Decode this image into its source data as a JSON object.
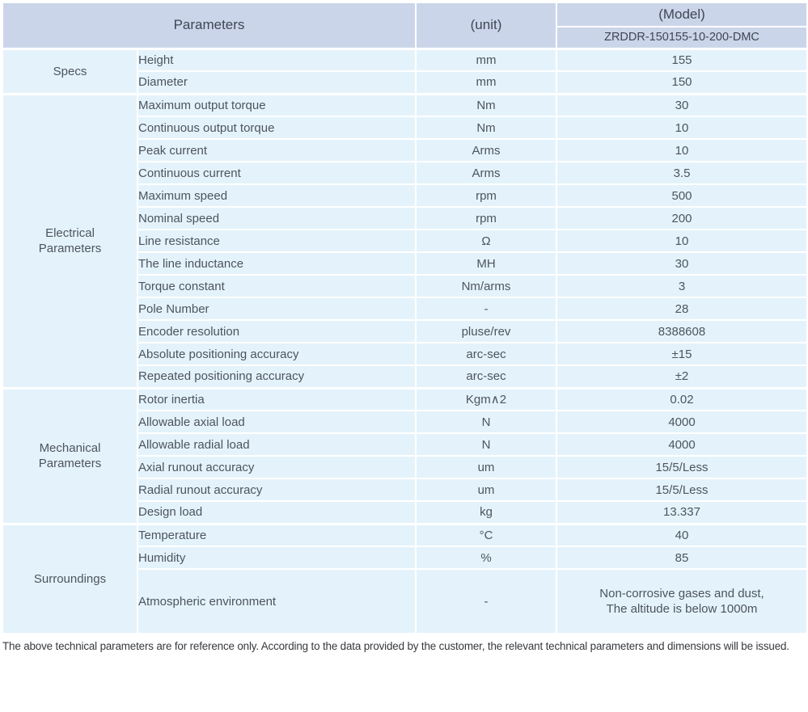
{
  "colors": {
    "header_bg": "#cbd5ea",
    "body_row_bg": "#e4f3fb",
    "grid_line": "#ffffff",
    "header_text": "#3f4754",
    "body_text": "#4d545d",
    "footnote_text": "#35383d"
  },
  "table": {
    "header": {
      "parameters_label": "Parameters",
      "unit_label": "(unit)",
      "model_label": "(Model)",
      "model_value": "ZRDDR-150155-10-200-DMC"
    },
    "sections": [
      {
        "category": "Specs",
        "rows": [
          {
            "name": "Height",
            "unit": "mm",
            "value": "155"
          },
          {
            "name": "Diameter",
            "unit": "mm",
            "value": "150"
          }
        ]
      },
      {
        "category": "Electrical\nParameters",
        "rows": [
          {
            "name": "Maximum output torque",
            "unit": "Nm",
            "value": "30"
          },
          {
            "name": "Continuous output torque",
            "unit": "Nm",
            "value": "10"
          },
          {
            "name": "Peak current",
            "unit": "Arms",
            "value": "10"
          },
          {
            "name": "Continuous current",
            "unit": "Arms",
            "value": "3.5"
          },
          {
            "name": "Maximum speed",
            "unit": "rpm",
            "value": "500"
          },
          {
            "name": "Nominal speed",
            "unit": "rpm",
            "value": "200"
          },
          {
            "name": "Line resistance",
            "unit": "Ω",
            "value": "10"
          },
          {
            "name": "The line inductance",
            "unit": "MH",
            "value": "30"
          },
          {
            "name": "Torque constant",
            "unit": "Nm/arms",
            "value": "3"
          },
          {
            "name": "Pole Number",
            "unit": "-",
            "value": "28"
          },
          {
            "name": "Encoder resolution",
            "unit": "pluse/rev",
            "value": "8388608"
          },
          {
            "name": "Absolute positioning accuracy",
            "unit": "arc-sec",
            "value": "±15"
          },
          {
            "name": "Repeated positioning accuracy",
            "unit": "arc-sec",
            "value": "±2"
          }
        ]
      },
      {
        "category": "Mechanical\nParameters",
        "rows": [
          {
            "name": "Rotor inertia",
            "unit": "Kgm∧2",
            "value": "0.02"
          },
          {
            "name": "Allowable axial load",
            "unit": "N",
            "value": "4000"
          },
          {
            "name": "Allowable radial load",
            "unit": "N",
            "value": "4000"
          },
          {
            "name": "Axial runout accuracy",
            "unit": "um",
            "value": "15/5/Less"
          },
          {
            "name": "Radial runout accuracy",
            "unit": "um",
            "value": "15/5/Less"
          },
          {
            "name": "Design load",
            "unit": "kg",
            "value": "13.337"
          }
        ]
      },
      {
        "category": "Surroundings",
        "rows": [
          {
            "name": "Temperature",
            "unit": "°C",
            "value": "40"
          },
          {
            "name": "Humidity",
            "unit": "%",
            "value": "85"
          },
          {
            "name": "Atmospheric environment",
            "unit": "-",
            "value": "Non-corrosive gases and dust,\nThe altitude is below 1000m",
            "tall": true
          }
        ]
      }
    ],
    "footnote": "The above technical parameters are for reference only. According to the data provided by the customer, the relevant technical parameters and dimensions will be issued."
  }
}
